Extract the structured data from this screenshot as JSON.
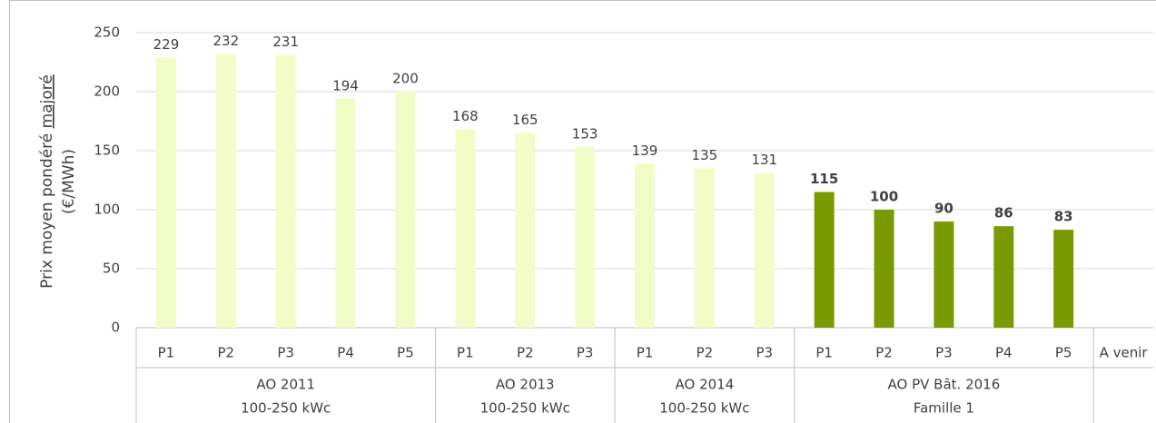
{
  "chart_data": {
    "type": "bar",
    "ylabel": {
      "text": "Prix moyen pondéré",
      "underlined": "majoré",
      "unit": "(€/MWh)"
    },
    "ylim": [
      0,
      250
    ],
    "yticks": [
      0,
      50,
      100,
      150,
      200,
      250
    ],
    "grid": true,
    "groups": [
      {
        "label": [
          "AO 2011",
          "100-250 kWc"
        ],
        "color": "#f2fcc6",
        "bold_labels": false,
        "categories": [
          "P1",
          "P2",
          "P3",
          "P4",
          "P5"
        ],
        "values": [
          229,
          232,
          231,
          194,
          200
        ]
      },
      {
        "label": [
          "AO 2013",
          "100-250 kWc"
        ],
        "color": "#f2fcc6",
        "bold_labels": false,
        "categories": [
          "P1",
          "P2",
          "P3"
        ],
        "values": [
          168,
          165,
          153
        ]
      },
      {
        "label": [
          "AO 2014",
          "100-250 kWc"
        ],
        "color": "#f2fcc6",
        "bold_labels": false,
        "categories": [
          "P1",
          "P2",
          "P3"
        ],
        "values": [
          139,
          135,
          131
        ]
      },
      {
        "label": [
          "AO PV Bât. 2016",
          "Famille 1"
        ],
        "color": "#7a9a01",
        "bold_labels": true,
        "categories": [
          "P1",
          "P2",
          "P3",
          "P4",
          "P5"
        ],
        "values": [
          115,
          100,
          90,
          86,
          83
        ]
      },
      {
        "categories": [
          "A venir"
        ],
        "values": [
          null
        ]
      }
    ]
  }
}
